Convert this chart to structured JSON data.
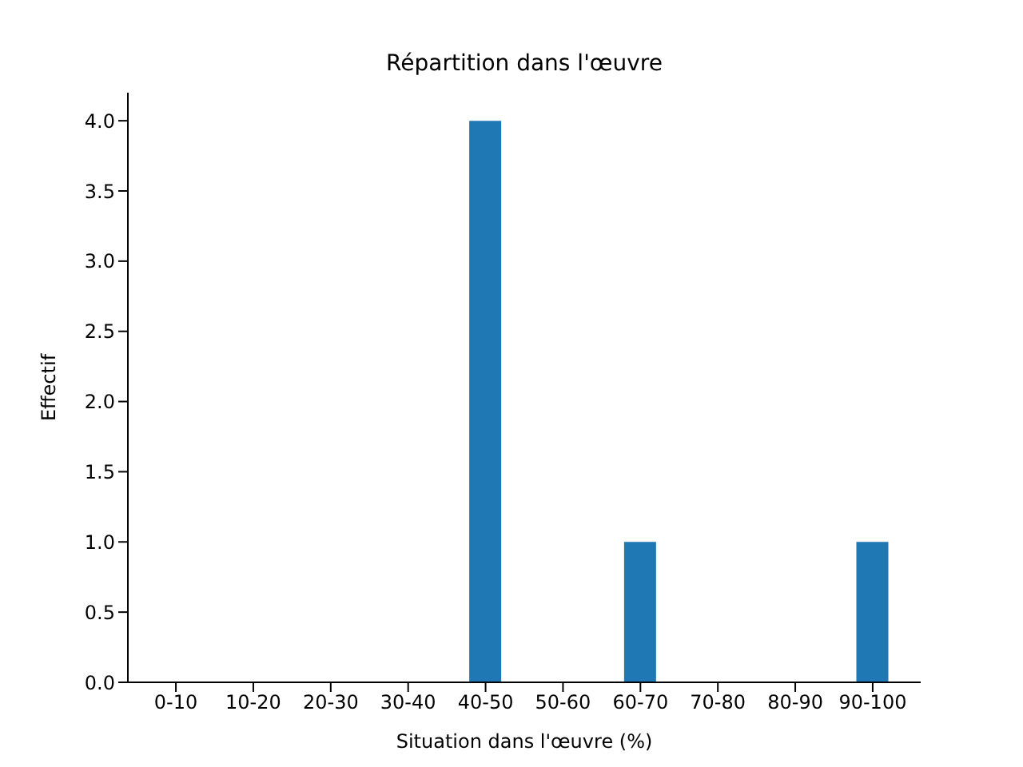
{
  "chart_data": {
    "type": "bar",
    "title": "Répartition dans l'œuvre",
    "xlabel": "Situation dans l'œuvre (%)",
    "ylabel": "Effectif",
    "categories": [
      "0-10",
      "10-20",
      "20-30",
      "30-40",
      "40-50",
      "50-60",
      "60-70",
      "70-80",
      "80-90",
      "90-100"
    ],
    "values": [
      0,
      0,
      0,
      0,
      4,
      0,
      1,
      0,
      0,
      1
    ],
    "color": "#1f77b4",
    "ylim": [
      0,
      4.2
    ],
    "yticks": [
      {
        "value": 0,
        "label": "0.0"
      },
      {
        "value": 0.5,
        "label": "0.5"
      },
      {
        "value": 1,
        "label": "1.0"
      },
      {
        "value": 1.5,
        "label": "1.5"
      },
      {
        "value": 2,
        "label": "2.0"
      },
      {
        "value": 2.5,
        "label": "2.5"
      },
      {
        "value": 3,
        "label": "3.0"
      },
      {
        "value": 3.5,
        "label": "3.5"
      },
      {
        "value": 4,
        "label": "4.0"
      }
    ],
    "grid": false,
    "legend": false
  }
}
